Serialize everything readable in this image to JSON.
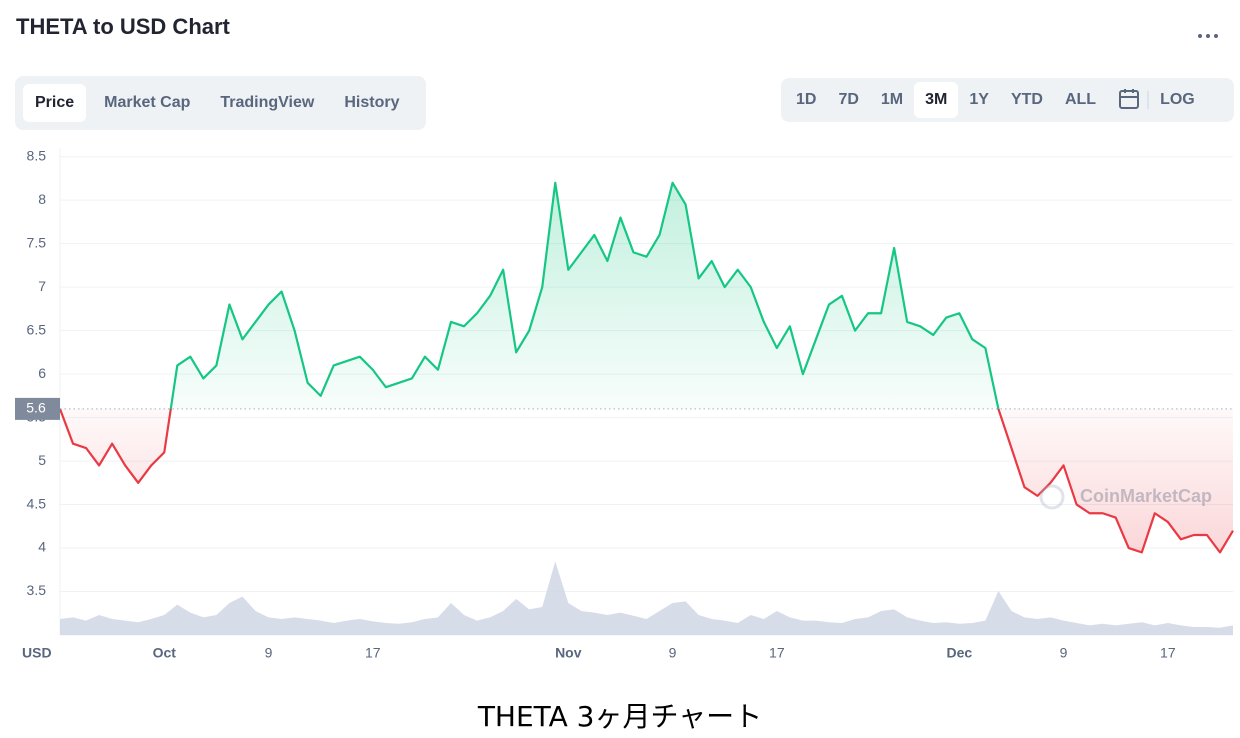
{
  "header": {
    "title": "THETA to USD Chart"
  },
  "tabs": [
    "Price",
    "Market Cap",
    "TradingView",
    "History"
  ],
  "ranges": [
    "1D",
    "7D",
    "1M",
    "3M",
    "1Y",
    "YTD",
    "ALL"
  ],
  "log": "LOG",
  "caption": "THETA 3ヶ月チャート",
  "chart_data": {
    "type": "line",
    "y_label": "USD",
    "watermark": "CoinMarketCap",
    "x": [
      -8,
      -7,
      -6,
      -5,
      -4,
      -3,
      -2,
      -1,
      0,
      1,
      2,
      3,
      4,
      5,
      6,
      7,
      8,
      9,
      10,
      11,
      12,
      13,
      14,
      15,
      16,
      17,
      18,
      19,
      20,
      21,
      22,
      23,
      24,
      25,
      26,
      27,
      28,
      29,
      30,
      31,
      32,
      33,
      34,
      35,
      36,
      37,
      38,
      39,
      40,
      41,
      42,
      43,
      44,
      45,
      46,
      47,
      48,
      49,
      50,
      51,
      52,
      53,
      54,
      55,
      56,
      57,
      58,
      59,
      60,
      61,
      62,
      63,
      64,
      65,
      66,
      67,
      68,
      69,
      70,
      71,
      72,
      73,
      74,
      75,
      76,
      77,
      78,
      79,
      80,
      81,
      82
    ],
    "values": [
      5.6,
      5.2,
      5.15,
      4.95,
      5.2,
      4.95,
      4.75,
      4.95,
      5.1,
      6.1,
      6.2,
      5.95,
      6.1,
      6.8,
      6.4,
      6.6,
      6.8,
      6.95,
      6.5,
      5.9,
      5.75,
      6.1,
      6.15,
      6.2,
      6.05,
      5.85,
      5.9,
      5.95,
      6.2,
      6.05,
      6.6,
      6.55,
      6.7,
      6.9,
      7.2,
      6.25,
      6.5,
      7.0,
      8.2,
      7.2,
      7.4,
      7.6,
      7.3,
      7.8,
      7.4,
      7.35,
      7.6,
      8.2,
      7.95,
      7.1,
      7.3,
      7.0,
      7.2,
      7.0,
      6.6,
      6.3,
      6.55,
      6.0,
      6.4,
      6.8,
      6.9,
      6.5,
      6.7,
      6.7,
      7.45,
      6.6,
      6.55,
      6.45,
      6.65,
      6.7,
      6.4,
      6.3,
      5.6,
      5.15,
      4.7,
      4.6,
      4.75,
      4.95,
      4.5,
      4.4,
      4.4,
      4.35,
      4.0,
      3.95,
      4.4,
      4.3,
      4.1,
      4.15,
      4.15,
      3.95,
      4.2
    ],
    "volume": {
      "color": "#cfd6e4",
      "values": [
        20,
        22,
        18,
        25,
        20,
        18,
        16,
        20,
        25,
        38,
        28,
        22,
        25,
        40,
        48,
        30,
        22,
        20,
        22,
        20,
        18,
        15,
        18,
        20,
        17,
        15,
        14,
        16,
        20,
        22,
        40,
        25,
        18,
        22,
        30,
        45,
        32,
        35,
        92,
        40,
        30,
        28,
        25,
        28,
        24,
        20,
        30,
        40,
        42,
        25,
        20,
        18,
        15,
        25,
        20,
        30,
        22,
        18,
        18,
        16,
        15,
        20,
        22,
        30,
        32,
        22,
        18,
        15,
        16,
        14,
        15,
        18,
        55,
        30,
        22,
        20,
        22,
        18,
        15,
        12,
        14,
        12,
        14,
        16,
        12,
        15,
        12,
        10,
        10,
        9,
        12
      ]
    },
    "y2lim": [
      0,
      100
    ],
    "reference": 5.6,
    "up_color": "#16c784",
    "down_color": "#ea3943",
    "xlim": [
      -8,
      82
    ],
    "xticks": [
      {
        "value": 0,
        "label": "Oct"
      },
      {
        "value": 8,
        "label": "9"
      },
      {
        "value": 16,
        "label": "17"
      },
      {
        "value": 31,
        "label": "Nov"
      },
      {
        "value": 39,
        "label": "9"
      },
      {
        "value": 47,
        "label": "17"
      },
      {
        "value": 61,
        "label": "Dec"
      },
      {
        "value": 69,
        "label": "9"
      },
      {
        "value": 77,
        "label": "17"
      }
    ],
    "ylim": [
      3.0,
      8.6
    ],
    "yticks": [
      3.5,
      4.0,
      4.5,
      5.0,
      5.5,
      6.0,
      6.5,
      7.0,
      7.5,
      8.0,
      8.5
    ],
    "grid": true
  }
}
